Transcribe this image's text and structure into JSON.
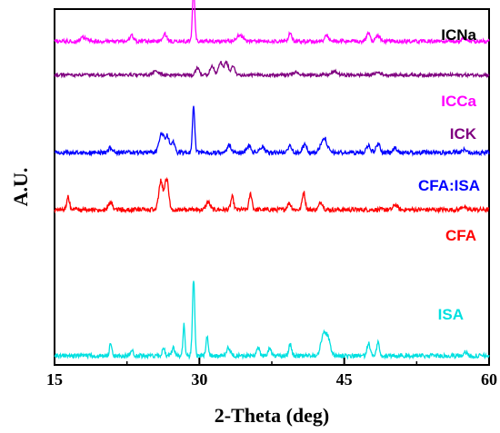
{
  "chart_data": {
    "type": "line",
    "title": "",
    "xlabel": "2-Theta (deg)",
    "ylabel": "A.U.",
    "xlim": [
      15,
      60
    ],
    "xticks": [
      15,
      30,
      45,
      60
    ],
    "xtick_labels": [
      "15",
      "30",
      "45",
      "60"
    ],
    "yticks_visible": false,
    "grid": false,
    "legend": "labels placed at right of each trace",
    "series": [
      {
        "name": "ICNa",
        "color": "#000000",
        "offset": 6.0,
        "noise": 0.02,
        "peaks": [
          [
            32.8,
            0.07,
            0.2
          ],
          [
            33.8,
            0.05,
            0.2
          ],
          [
            38.0,
            0.14,
            0.15
          ],
          [
            45.5,
            0.04,
            0.2
          ],
          [
            52.0,
            0.03,
            0.2
          ]
        ]
      },
      {
        "name": "ICCa",
        "color": "#ff00ff",
        "offset": 4.95,
        "noise": 0.03,
        "peaks": [
          [
            18.0,
            0.06,
            0.3
          ],
          [
            23.0,
            0.09,
            0.2
          ],
          [
            26.4,
            0.12,
            0.2
          ],
          [
            29.4,
            0.85,
            0.12
          ],
          [
            34.2,
            0.1,
            0.3
          ],
          [
            39.4,
            0.14,
            0.15
          ],
          [
            43.2,
            0.09,
            0.2
          ],
          [
            47.5,
            0.12,
            0.2
          ],
          [
            48.5,
            0.1,
            0.2
          ],
          [
            57.4,
            0.05,
            0.2
          ]
        ]
      },
      {
        "name": "ICK",
        "color": "#800080",
        "offset": 4.42,
        "noise": 0.025,
        "peaks": [
          [
            25.5,
            0.06,
            0.3
          ],
          [
            29.8,
            0.12,
            0.2
          ],
          [
            31.3,
            0.15,
            0.2
          ],
          [
            32.2,
            0.2,
            0.2
          ],
          [
            32.8,
            0.2,
            0.2
          ],
          [
            33.5,
            0.13,
            0.2
          ],
          [
            40.0,
            0.05,
            0.3
          ],
          [
            44.0,
            0.05,
            0.3
          ],
          [
            48.5,
            0.04,
            0.3
          ]
        ]
      },
      {
        "name": "CFA:ISA",
        "color": "#0000ff",
        "offset": 3.2,
        "noise": 0.035,
        "peaks": [
          [
            20.8,
            0.08,
            0.2
          ],
          [
            26.1,
            0.3,
            0.25
          ],
          [
            26.7,
            0.25,
            0.2
          ],
          [
            27.3,
            0.17,
            0.15
          ],
          [
            29.4,
            0.75,
            0.12
          ],
          [
            33.1,
            0.12,
            0.2
          ],
          [
            35.1,
            0.1,
            0.2
          ],
          [
            36.5,
            0.09,
            0.2
          ],
          [
            39.4,
            0.11,
            0.2
          ],
          [
            40.9,
            0.12,
            0.2
          ],
          [
            42.9,
            0.24,
            0.3
          ],
          [
            47.5,
            0.12,
            0.2
          ],
          [
            48.5,
            0.14,
            0.2
          ],
          [
            50.3,
            0.07,
            0.2
          ],
          [
            57.5,
            0.05,
            0.2
          ]
        ]
      },
      {
        "name": "CFA",
        "color": "#ff0000",
        "offset": 2.3,
        "noise": 0.035,
        "peaks": [
          [
            16.4,
            0.2,
            0.15
          ],
          [
            20.8,
            0.12,
            0.2
          ],
          [
            26.0,
            0.45,
            0.2
          ],
          [
            26.6,
            0.5,
            0.2
          ],
          [
            30.9,
            0.12,
            0.2
          ],
          [
            33.4,
            0.2,
            0.15
          ],
          [
            35.3,
            0.25,
            0.15
          ],
          [
            39.3,
            0.1,
            0.2
          ],
          [
            40.8,
            0.28,
            0.15
          ],
          [
            42.6,
            0.12,
            0.2
          ],
          [
            50.3,
            0.08,
            0.2
          ],
          [
            57.3,
            0.05,
            0.2
          ]
        ]
      },
      {
        "name": "ISA",
        "color": "#00e0e0",
        "offset": 0.0,
        "noise": 0.035,
        "peaks": [
          [
            20.8,
            0.18,
            0.12
          ],
          [
            23.0,
            0.1,
            0.15
          ],
          [
            26.3,
            0.1,
            0.15
          ],
          [
            27.3,
            0.12,
            0.15
          ],
          [
            28.4,
            0.5,
            0.1
          ],
          [
            29.4,
            1.2,
            0.12
          ],
          [
            30.8,
            0.3,
            0.12
          ],
          [
            33.0,
            0.12,
            0.2
          ],
          [
            36.1,
            0.13,
            0.15
          ],
          [
            37.3,
            0.12,
            0.15
          ],
          [
            39.4,
            0.18,
            0.15
          ],
          [
            42.8,
            0.3,
            0.25
          ],
          [
            43.3,
            0.28,
            0.25
          ],
          [
            47.5,
            0.2,
            0.15
          ],
          [
            48.5,
            0.22,
            0.15
          ],
          [
            57.5,
            0.06,
            0.2
          ]
        ]
      }
    ]
  }
}
